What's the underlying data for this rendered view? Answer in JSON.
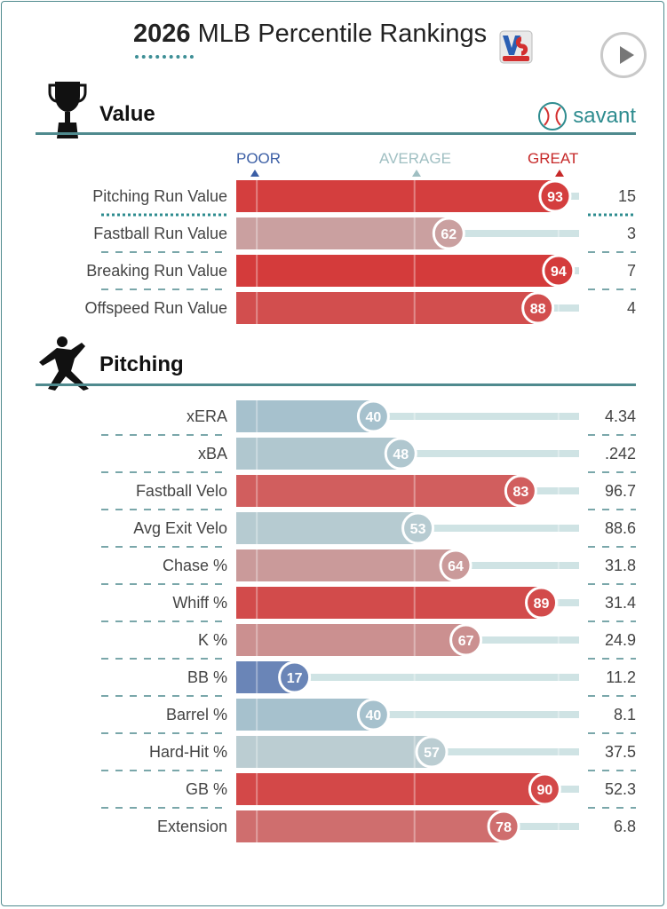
{
  "header": {
    "year": "2026",
    "title": "MLB Percentile Rankings"
  },
  "sections": [
    {
      "title": "Value",
      "brand": "savant"
    },
    {
      "title": "Pitching"
    }
  ],
  "scale": {
    "poor": "POOR",
    "average": "AVERAGE",
    "great": "GREAT"
  },
  "colors": {
    "accent": "#4f8a8e",
    "great": "#d22d2d",
    "poor": "#3b63b0",
    "track": "#cfe3e4"
  },
  "chart_data": {
    "type": "bar",
    "xlim": [
      0,
      100
    ],
    "groups": [
      {
        "section": "Value",
        "rows": [
          {
            "label": "Pitching Run Value",
            "percentile": 93,
            "stat": "15"
          },
          {
            "label": "Fastball Run Value",
            "percentile": 62,
            "stat": "3"
          },
          {
            "label": "Breaking Run Value",
            "percentile": 94,
            "stat": "7"
          },
          {
            "label": "Offspeed Run Value",
            "percentile": 88,
            "stat": "4"
          }
        ]
      },
      {
        "section": "Pitching",
        "rows": [
          {
            "label": "xERA",
            "percentile": 40,
            "stat": "4.34"
          },
          {
            "label": "xBA",
            "percentile": 48,
            "stat": ".242"
          },
          {
            "label": "Fastball Velo",
            "percentile": 83,
            "stat": "96.7"
          },
          {
            "label": "Avg Exit Velo",
            "percentile": 53,
            "stat": "88.6"
          },
          {
            "label": "Chase %",
            "percentile": 64,
            "stat": "31.8"
          },
          {
            "label": "Whiff %",
            "percentile": 89,
            "stat": "31.4"
          },
          {
            "label": "K %",
            "percentile": 67,
            "stat": "24.9"
          },
          {
            "label": "BB %",
            "percentile": 17,
            "stat": "11.2"
          },
          {
            "label": "Barrel %",
            "percentile": 40,
            "stat": "8.1"
          },
          {
            "label": "Hard-Hit %",
            "percentile": 57,
            "stat": "37.5"
          },
          {
            "label": "GB %",
            "percentile": 90,
            "stat": "52.3"
          },
          {
            "label": "Extension",
            "percentile": 78,
            "stat": "6.8"
          }
        ]
      }
    ]
  }
}
